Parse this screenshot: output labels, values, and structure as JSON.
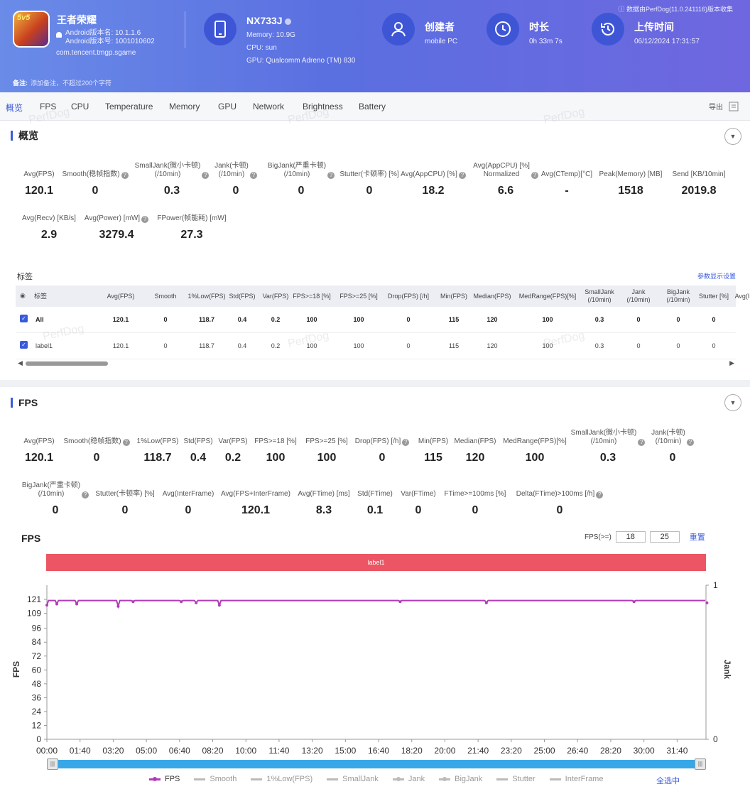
{
  "header": {
    "app_name": "王者荣耀",
    "app_logo_text": "5v5",
    "android_version_name": "Android版本名: 10.1.1.6",
    "android_version_code": "Android版本号: 1001010602",
    "package": "com.tencent.tmgp.sgame",
    "device": {
      "name": "NX733J",
      "memory": "Memory: 10.9G",
      "cpu": "CPU: sun",
      "gpu": "GPU: Qualcomm Adreno (TM) 830"
    },
    "creator": {
      "title": "创建者",
      "value": "mobile PC"
    },
    "duration": {
      "title": "时长",
      "value": "0h 33m 7s"
    },
    "upload": {
      "title": "上传时间",
      "value": "06/12/2024 17:31:57"
    },
    "note": "数据由PerfDog(11.0.241116)版本收集",
    "remark_label": "备注:",
    "remark_placeholder": "添加备注，不超过200个字符"
  },
  "tabs": [
    "概览",
    "FPS",
    "CPU",
    "Temperature",
    "Memory",
    "GPU",
    "Network",
    "Brightness",
    "Battery"
  ],
  "export_label": "导出",
  "watermark": "PerfDog",
  "overview": {
    "title": "概览",
    "metrics_row1": [
      {
        "label": "Avg(FPS)",
        "value": "120.1"
      },
      {
        "label": "Smooth(稳帧指数)",
        "value": "0"
      },
      {
        "label": "SmallJank(微小卡顿)\n(/10min)",
        "value": "0.3"
      },
      {
        "label": "Jank(卡顿)\n(/10min)",
        "value": "0"
      },
      {
        "label": "BigJank(严重卡顿)\n(/10min)",
        "value": "0"
      },
      {
        "label": "Stutter(卡顿率) [%]",
        "value": "0"
      },
      {
        "label": "Avg(AppCPU) [%]",
        "value": "18.2"
      },
      {
        "label": "Avg(AppCPU) [%]\nNormalized",
        "value": "6.6"
      },
      {
        "label": "Avg(CTemp)[°C]",
        "value": "-"
      },
      {
        "label": "Peak(Memory) [MB]",
        "value": "1518"
      },
      {
        "label": "Send [KB/10min]",
        "value": "2019.8"
      }
    ],
    "metrics_row2": [
      {
        "label": "Avg(Recv) [KB/s]",
        "value": "2.9"
      },
      {
        "label": "Avg(Power) [mW]",
        "value": "3279.4"
      },
      {
        "label": "FPower(帧能耗) [mW]",
        "value": "27.3"
      }
    ],
    "tags_label": "标签",
    "params_link": "参数显示设置",
    "table": {
      "headers": [
        "标签",
        "Avg(FPS)",
        "Smooth",
        "1%Low(FPS)",
        "Std(FPS)",
        "Var(FPS)",
        "FPS>=18 [%]",
        "FPS>=25 [%]",
        "Drop(FPS) [/h]",
        "Min(FPS)",
        "Median(FPS)",
        "MedRange(FPS)[%]",
        "SmallJank\n(/10min)",
        "Jank\n(/10min)",
        "BigJank\n(/10min)",
        "Stutter [%]",
        "Avg(I"
      ],
      "rows": [
        [
          "All",
          "120.1",
          "0",
          "118.7",
          "0.4",
          "0.2",
          "100",
          "100",
          "0",
          "115",
          "120",
          "100",
          "0.3",
          "0",
          "0",
          "0",
          ""
        ],
        [
          "label1",
          "120.1",
          "0",
          "118.7",
          "0.4",
          "0.2",
          "100",
          "100",
          "0",
          "115",
          "120",
          "100",
          "0.3",
          "0",
          "0",
          "0",
          ""
        ]
      ]
    }
  },
  "fps_section": {
    "title": "FPS",
    "metrics_row1": [
      {
        "label": "Avg(FPS)",
        "value": "120.1"
      },
      {
        "label": "Smooth(稳帧指数)",
        "value": "0"
      },
      {
        "label": "1%Low(FPS)",
        "value": "118.7"
      },
      {
        "label": "Std(FPS)",
        "value": "0.4"
      },
      {
        "label": "Var(FPS)",
        "value": "0.2"
      },
      {
        "label": "FPS>=18 [%]",
        "value": "100"
      },
      {
        "label": "FPS>=25 [%]",
        "value": "100"
      },
      {
        "label": "Drop(FPS) [/h]",
        "value": "0"
      },
      {
        "label": "Min(FPS)",
        "value": "115"
      },
      {
        "label": "Median(FPS)",
        "value": "120"
      },
      {
        "label": "MedRange(FPS)[%]",
        "value": "100"
      },
      {
        "label": "SmallJank(微小卡顿)\n(/10min)",
        "value": "0.3"
      },
      {
        "label": "Jank(卡顿)\n(/10min)",
        "value": "0"
      }
    ],
    "metrics_row2": [
      {
        "label": "BigJank(严重卡顿)\n(/10min)",
        "value": "0"
      },
      {
        "label": "Stutter(卡顿率) [%]",
        "value": "0"
      },
      {
        "label": "Avg(InterFrame)",
        "value": "0"
      },
      {
        "label": "Avg(FPS+InterFrame)",
        "value": "120.1"
      },
      {
        "label": "Avg(FTime) [ms]",
        "value": "8.3"
      },
      {
        "label": "Std(FTime)",
        "value": "0.1"
      },
      {
        "label": "Var(FTime)",
        "value": "0"
      },
      {
        "label": "FTime>=100ms [%]",
        "value": "0"
      },
      {
        "label": "Delta(FTime)>100ms [/h]",
        "value": "0"
      }
    ],
    "chart_title": "FPS",
    "threshold_label": "FPS(>=)",
    "threshold_1": "18",
    "threshold_2": "25",
    "reset_label": "重置",
    "label_bar": "label1",
    "legend": [
      "FPS",
      "Smooth",
      "1%Low(FPS)",
      "SmallJank",
      "Jank",
      "BigJank",
      "Stutter",
      "InterFrame"
    ],
    "select_all": "全选中"
  },
  "chart_data": {
    "type": "line",
    "title": "FPS",
    "ylabel": "FPS",
    "y2label": "Jank",
    "ylim": [
      0,
      121
    ],
    "y2lim": [
      0,
      1
    ],
    "yticks": [
      0,
      12,
      24,
      36,
      48,
      60,
      72,
      84,
      96,
      109,
      121
    ],
    "y2ticks": [
      0,
      1
    ],
    "xlim_seconds": [
      0,
      1987
    ],
    "xticks": [
      "00:00",
      "01:40",
      "03:20",
      "05:00",
      "06:40",
      "08:20",
      "10:00",
      "11:40",
      "13:20",
      "15:00",
      "16:40",
      "18:20",
      "20:00",
      "21:40",
      "23:20",
      "25:00",
      "26:40",
      "28:20",
      "30:00",
      "31:40"
    ],
    "color": "#b03cb8",
    "series": [
      {
        "name": "FPS",
        "baseline": 120,
        "dips": [
          [
            0,
            116
          ],
          [
            30,
            117
          ],
          [
            90,
            117
          ],
          [
            215,
            115
          ],
          [
            260,
            119
          ],
          [
            405,
            119
          ],
          [
            450,
            118
          ],
          [
            520,
            116
          ],
          [
            1065,
            119
          ],
          [
            1325,
            118
          ],
          [
            1770,
            119
          ],
          [
            1990,
            118
          ]
        ]
      }
    ]
  }
}
